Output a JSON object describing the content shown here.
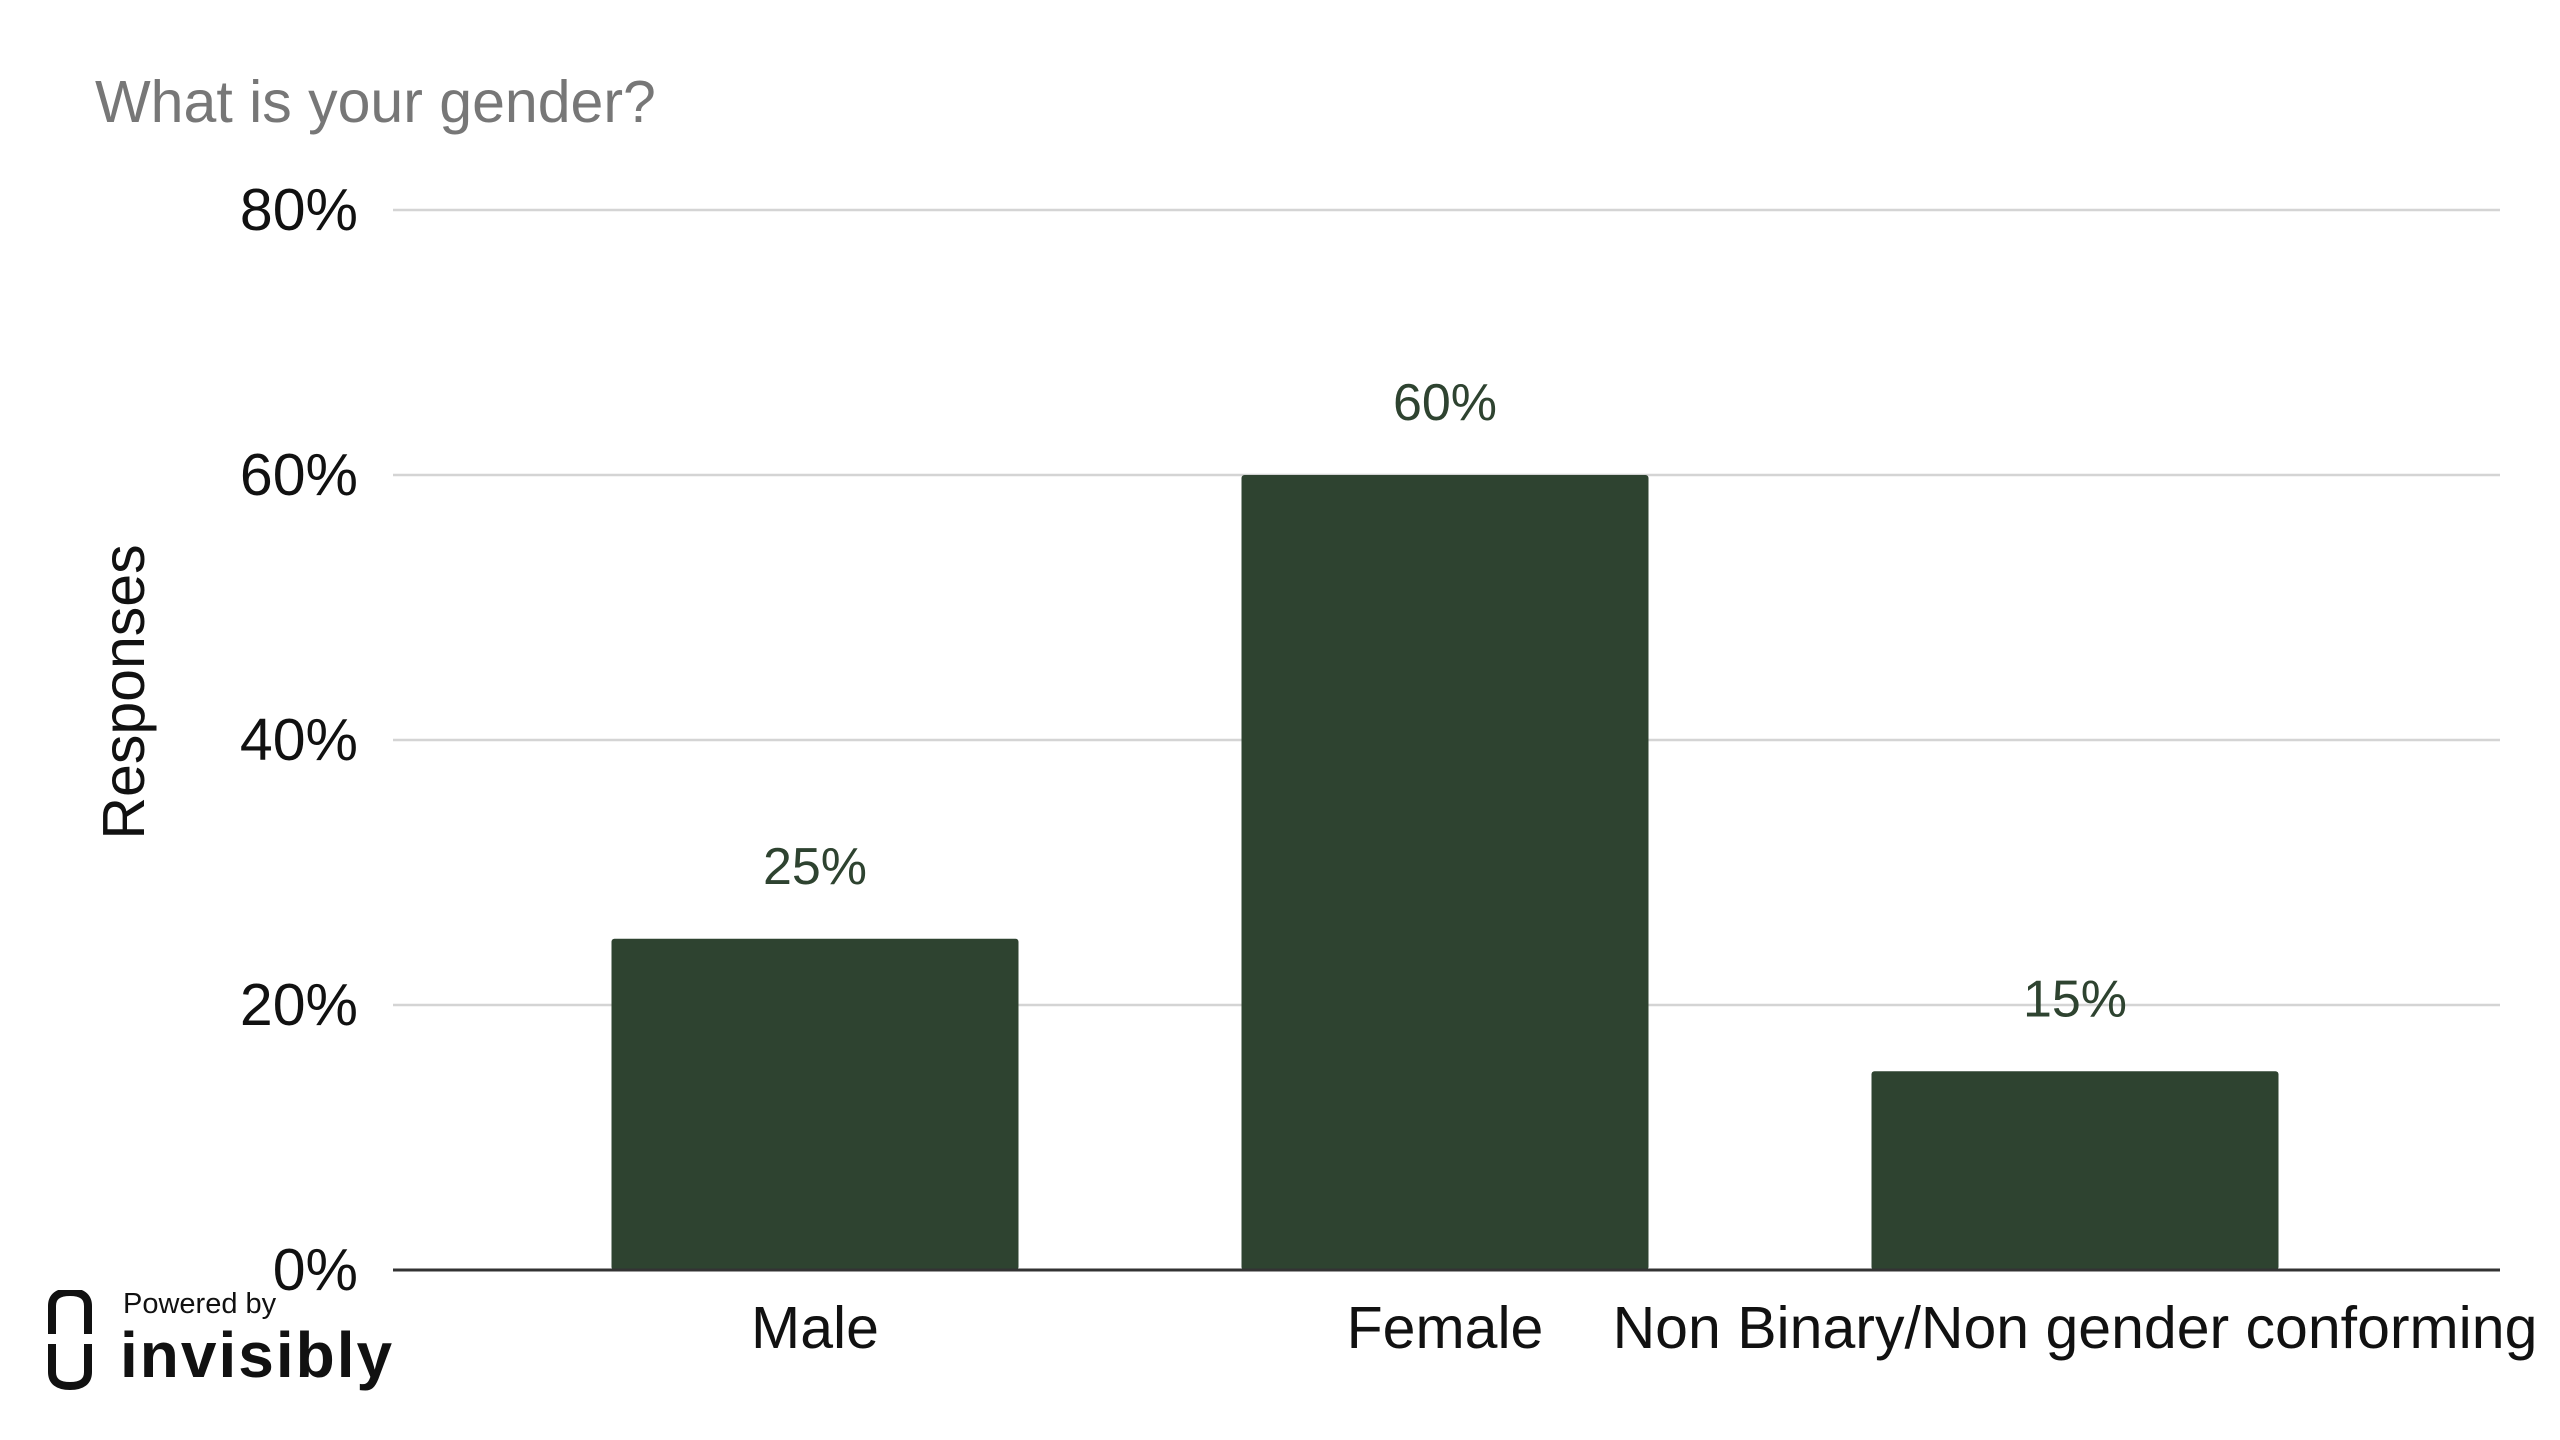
{
  "chart_data": {
    "type": "bar",
    "title": "What is your gender?",
    "xlabel": "",
    "ylabel": "Responses",
    "categories": [
      "Male",
      "Female",
      "Non Binary/Non gender conforming"
    ],
    "values": [
      25,
      60,
      15
    ],
    "data_labels": [
      "25%",
      "60%",
      "15%"
    ],
    "ylim": [
      0,
      80
    ],
    "yticks": [
      0,
      20,
      40,
      60,
      80
    ],
    "ytick_labels": [
      "0%",
      "20%",
      "40%",
      "60%",
      "80%"
    ],
    "grid": true,
    "legend": "none",
    "bar_color": "#2e4330",
    "data_label_color": "#2e4330",
    "title_color": "#777777",
    "grid_color": "#d4d4d4"
  },
  "branding": {
    "powered_by": "Powered by",
    "name": "invisibly",
    "icon": "invisibly-logo-icon"
  }
}
